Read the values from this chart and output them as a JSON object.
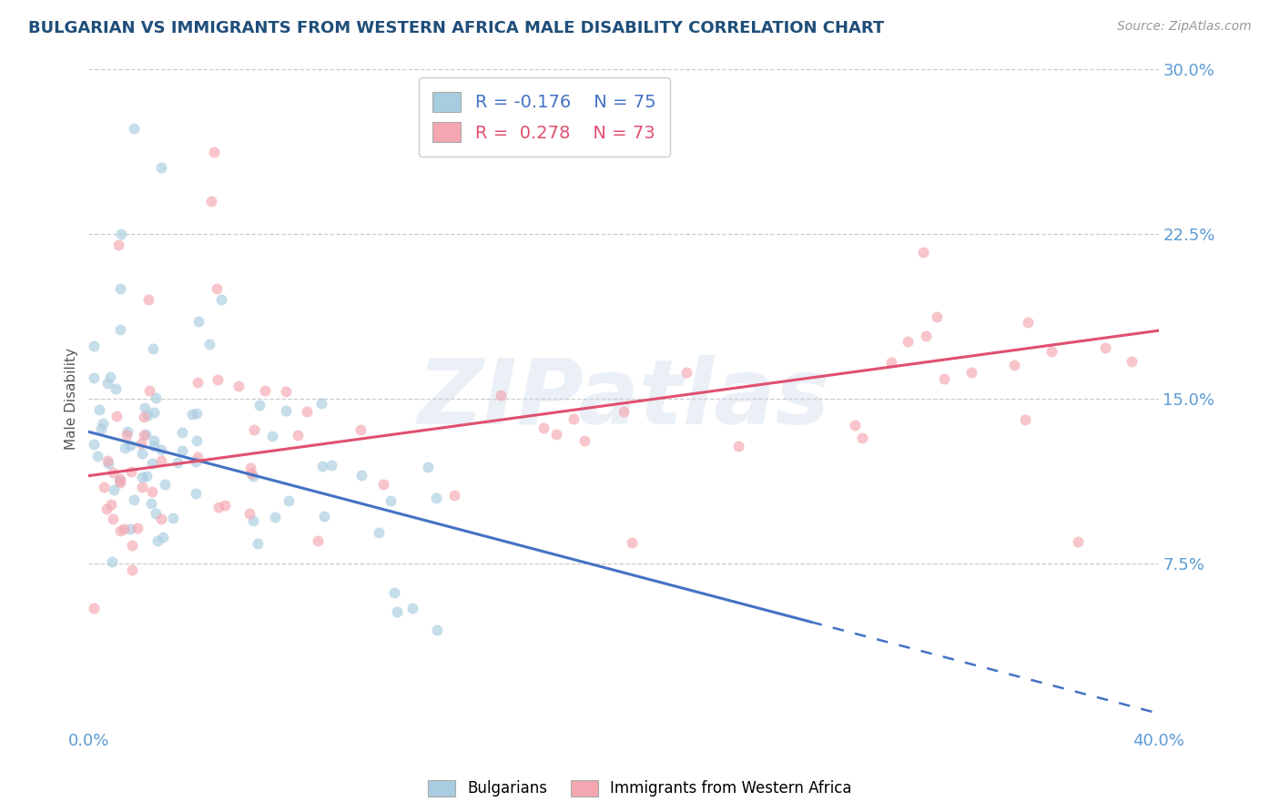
{
  "title": "BULGARIAN VS IMMIGRANTS FROM WESTERN AFRICA MALE DISABILITY CORRELATION CHART",
  "source": "Source: ZipAtlas.com",
  "ylabel": "Male Disability",
  "xlim": [
    0.0,
    0.4
  ],
  "ylim": [
    0.0,
    0.3
  ],
  "ytick_vals": [
    0.075,
    0.15,
    0.225,
    0.3
  ],
  "ytick_labels": [
    "7.5%",
    "15.0%",
    "22.5%",
    "30.0%"
  ],
  "xtick_vals": [
    0.0,
    0.05,
    0.1,
    0.15,
    0.2,
    0.25,
    0.3,
    0.35,
    0.4
  ],
  "grid_color": "#cccccc",
  "bg_color": "#ffffff",
  "watermark_text": "ZIPatlas",
  "r_bulg": -0.176,
  "n_bulg": 75,
  "r_immig": 0.278,
  "n_immig": 73,
  "color_bulgarian": "#a8cce0",
  "color_immigrant": "#f4a7b0",
  "color_line_bulgarian": "#4472c4",
  "color_line_immigrant": "#e05070",
  "color_axis_text": "#5b9bd5",
  "color_title": "#1f4e79",
  "color_source": "#999999",
  "axis_label_color": "#555555",
  "title_fontsize": 13,
  "axis_fontsize": 13,
  "legend_fontsize": 14,
  "bulg_line_start": 0.0,
  "bulg_line_solid_end": 0.27,
  "bulg_line_dashed_end": 0.4,
  "immig_line_start": 0.0,
  "immig_line_end": 0.4,
  "bulg_intercept": 0.135,
  "bulg_slope": -0.32,
  "immig_intercept": 0.115,
  "immig_slope": 0.165
}
